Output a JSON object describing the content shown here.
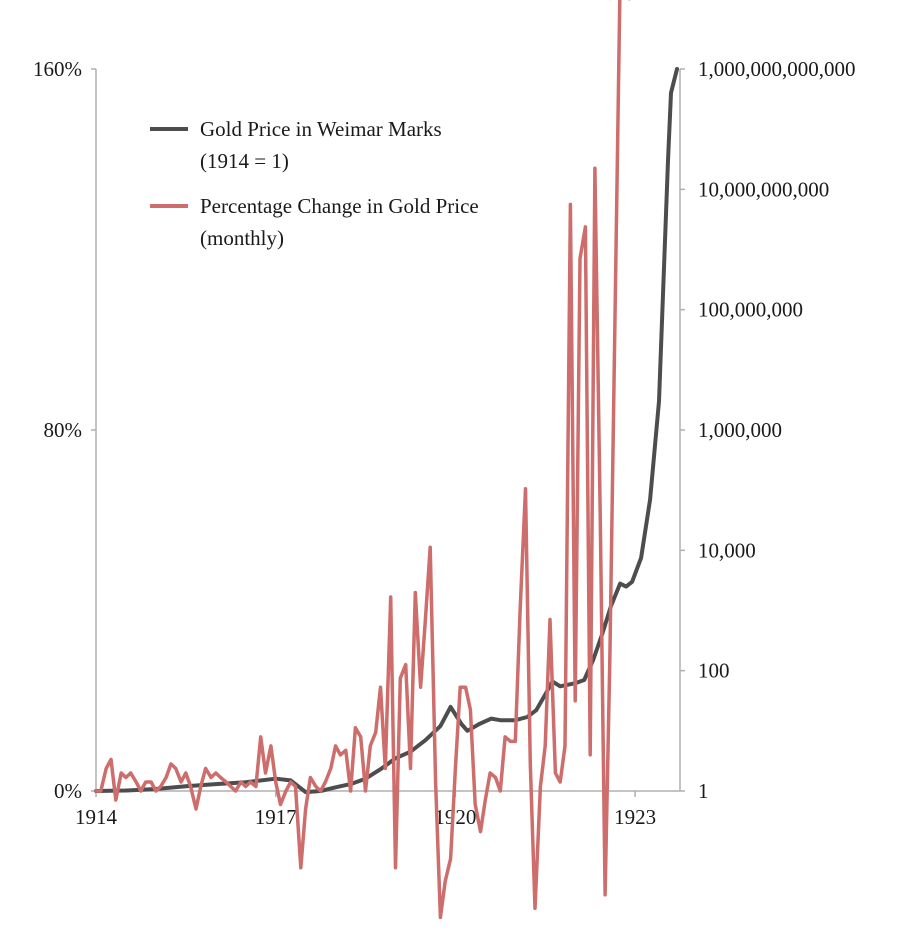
{
  "chart_data": {
    "type": "line",
    "title": "",
    "xlabel": "",
    "ylabel_left": "",
    "ylabel_right": "",
    "x_range": [
      1914,
      1923.75
    ],
    "x_ticks": [
      {
        "value": 1914,
        "label": "1914"
      },
      {
        "value": 1917,
        "label": "1917"
      },
      {
        "value": 1920,
        "label": "1920"
      },
      {
        "value": 1923,
        "label": "1923"
      }
    ],
    "left_axis": {
      "ylim": [
        0,
        160
      ],
      "ticks": [
        {
          "value": 0,
          "label": "0%"
        },
        {
          "value": 80,
          "label": "80%"
        },
        {
          "value": 160,
          "label": "160%"
        }
      ]
    },
    "right_axis": {
      "scale": "log",
      "ylim": [
        1,
        1000000000000
      ],
      "ticks": [
        {
          "value": 1,
          "label": "1"
        },
        {
          "value": 100,
          "label": "100"
        },
        {
          "value": 10000,
          "label": "10,000"
        },
        {
          "value": 1000000,
          "label": "1,000,000"
        },
        {
          "value": 100000000,
          "label": "100,000,000"
        },
        {
          "value": 10000000000,
          "label": "10,000,000,000"
        },
        {
          "value": 1000000000000,
          "label": "1,000,000,000,000"
        }
      ]
    },
    "grid": false,
    "legend_position": "top-left",
    "legend": [
      {
        "series": "gold",
        "lines": [
          "Gold Price in Weimar Marks",
          "(1914 = 1)"
        ]
      },
      {
        "series": "pct",
        "lines": [
          "Percentage Change in Gold Price",
          "(monthly)"
        ]
      }
    ],
    "series": [
      {
        "id": "gold",
        "name": "Gold Price in Weimar Marks (1914 = 1)",
        "axis": "right",
        "color": "#4d4d4d",
        "points": [
          [
            1914.0,
            1
          ],
          [
            1914.5,
            1.02
          ],
          [
            1915.0,
            1.08
          ],
          [
            1915.5,
            1.2
          ],
          [
            1916.0,
            1.3
          ],
          [
            1916.5,
            1.4
          ],
          [
            1917.0,
            1.6
          ],
          [
            1917.25,
            1.5
          ],
          [
            1917.5,
            0.96
          ],
          [
            1917.75,
            1.0
          ],
          [
            1918.0,
            1.15
          ],
          [
            1918.25,
            1.3
          ],
          [
            1918.5,
            1.6
          ],
          [
            1918.75,
            2.3
          ],
          [
            1919.0,
            3.5
          ],
          [
            1919.25,
            4.5
          ],
          [
            1919.5,
            7
          ],
          [
            1919.75,
            12
          ],
          [
            1919.92,
            25
          ],
          [
            1920.1,
            13
          ],
          [
            1920.2,
            10
          ],
          [
            1920.4,
            13
          ],
          [
            1920.6,
            16
          ],
          [
            1920.75,
            15
          ],
          [
            1921.0,
            15
          ],
          [
            1921.2,
            17
          ],
          [
            1921.35,
            22
          ],
          [
            1921.5,
            40
          ],
          [
            1921.62,
            66
          ],
          [
            1921.75,
            55
          ],
          [
            1922.0,
            62
          ],
          [
            1922.15,
            70
          ],
          [
            1922.3,
            150
          ],
          [
            1922.45,
            400
          ],
          [
            1922.6,
            1200
          ],
          [
            1922.75,
            2800
          ],
          [
            1922.85,
            2500
          ],
          [
            1922.95,
            3000
          ],
          [
            1923.1,
            7500
          ],
          [
            1923.25,
            70000
          ],
          [
            1923.4,
            3000000
          ],
          [
            1923.55,
            30000000000
          ],
          [
            1923.6,
            400000000000
          ],
          [
            1923.7,
            1000000000000
          ]
        ]
      },
      {
        "id": "pct",
        "name": "Percentage Change in Gold Price (monthly)",
        "axis": "left",
        "color": "#cd6d6c",
        "arrow_at_end": true,
        "points": [
          [
            1914.0,
            0
          ],
          [
            1914.08,
            0
          ],
          [
            1914.17,
            5
          ],
          [
            1914.25,
            7
          ],
          [
            1914.33,
            -2
          ],
          [
            1914.42,
            4
          ],
          [
            1914.5,
            3
          ],
          [
            1914.58,
            4
          ],
          [
            1914.67,
            2
          ],
          [
            1914.75,
            0
          ],
          [
            1914.83,
            2
          ],
          [
            1914.92,
            2
          ],
          [
            1915.0,
            0
          ],
          [
            1915.08,
            1
          ],
          [
            1915.17,
            3
          ],
          [
            1915.25,
            6
          ],
          [
            1915.33,
            5
          ],
          [
            1915.42,
            2
          ],
          [
            1915.5,
            4
          ],
          [
            1915.58,
            1
          ],
          [
            1915.67,
            -4
          ],
          [
            1915.75,
            1
          ],
          [
            1915.83,
            5
          ],
          [
            1915.92,
            3
          ],
          [
            1916.0,
            4
          ],
          [
            1916.08,
            3
          ],
          [
            1916.17,
            2
          ],
          [
            1916.25,
            1
          ],
          [
            1916.33,
            0
          ],
          [
            1916.42,
            2
          ],
          [
            1916.5,
            1
          ],
          [
            1916.58,
            2
          ],
          [
            1916.67,
            1
          ],
          [
            1916.75,
            12
          ],
          [
            1916.83,
            4
          ],
          [
            1916.92,
            10
          ],
          [
            1917.0,
            2
          ],
          [
            1917.08,
            -3
          ],
          [
            1917.17,
            0
          ],
          [
            1917.25,
            2
          ],
          [
            1917.33,
            1
          ],
          [
            1917.42,
            -17
          ],
          [
            1917.5,
            -4
          ],
          [
            1917.58,
            3
          ],
          [
            1917.67,
            1
          ],
          [
            1917.75,
            0
          ],
          [
            1917.83,
            2
          ],
          [
            1917.92,
            5
          ],
          [
            1918.0,
            10
          ],
          [
            1918.08,
            8
          ],
          [
            1918.17,
            9
          ],
          [
            1918.25,
            0
          ],
          [
            1918.33,
            14
          ],
          [
            1918.42,
            12
          ],
          [
            1918.5,
            0
          ],
          [
            1918.58,
            10
          ],
          [
            1918.67,
            13
          ],
          [
            1918.75,
            23
          ],
          [
            1918.83,
            5
          ],
          [
            1918.92,
            43
          ],
          [
            1919.0,
            -17
          ],
          [
            1919.08,
            25
          ],
          [
            1919.17,
            28
          ],
          [
            1919.25,
            5
          ],
          [
            1919.33,
            44
          ],
          [
            1919.42,
            23
          ],
          [
            1919.5,
            38
          ],
          [
            1919.58,
            54
          ],
          [
            1919.67,
            2
          ],
          [
            1919.75,
            -28
          ],
          [
            1919.83,
            -20
          ],
          [
            1919.92,
            -15
          ],
          [
            1920.0,
            5
          ],
          [
            1920.08,
            23
          ],
          [
            1920.17,
            23
          ],
          [
            1920.25,
            18
          ],
          [
            1920.33,
            -3
          ],
          [
            1920.42,
            -9
          ],
          [
            1920.5,
            -2
          ],
          [
            1920.58,
            4
          ],
          [
            1920.67,
            3
          ],
          [
            1920.75,
            0
          ],
          [
            1920.83,
            12
          ],
          [
            1920.92,
            11
          ],
          [
            1921.0,
            11
          ],
          [
            1921.08,
            40
          ],
          [
            1921.17,
            67
          ],
          [
            1921.25,
            6
          ],
          [
            1921.33,
            -26
          ],
          [
            1921.42,
            1
          ],
          [
            1921.5,
            10
          ],
          [
            1921.58,
            38
          ],
          [
            1921.67,
            4
          ],
          [
            1921.75,
            2
          ],
          [
            1921.83,
            10
          ],
          [
            1921.92,
            130
          ],
          [
            1922.0,
            20
          ],
          [
            1922.08,
            118
          ],
          [
            1922.17,
            125
          ],
          [
            1922.25,
            8
          ],
          [
            1922.33,
            138
          ],
          [
            1922.42,
            60
          ],
          [
            1922.5,
            -23
          ],
          [
            1922.58,
            30
          ],
          [
            1922.75,
            180
          ]
        ]
      }
    ]
  }
}
